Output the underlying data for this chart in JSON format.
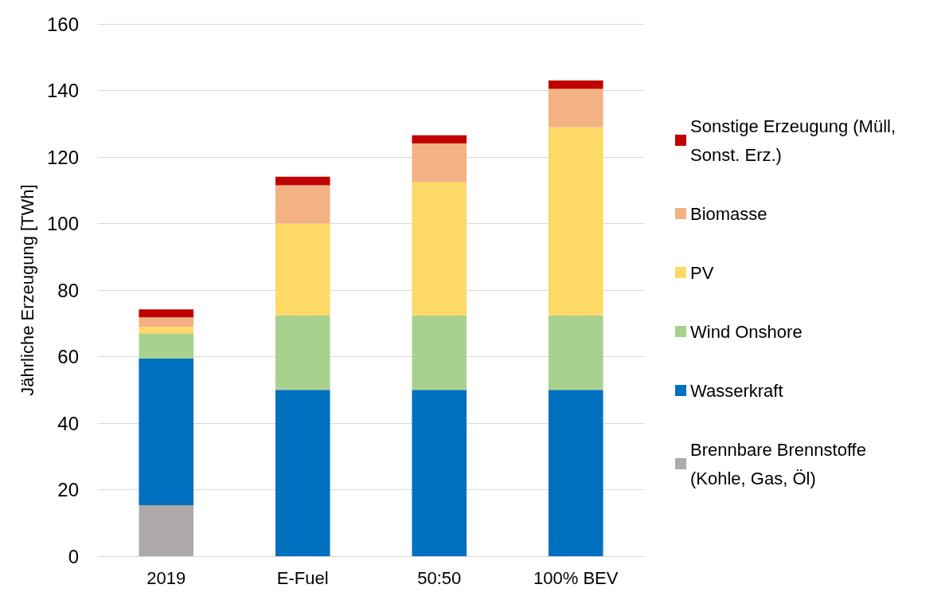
{
  "chart_data": {
    "type": "bar",
    "stacked": true,
    "ylabel": "Jährliche Erzeugung [TWh]",
    "categories": [
      "2019",
      "E-Fuel",
      "50:50",
      "100% BEV"
    ],
    "series": [
      {
        "name": "Brennbare Brennstoffe (Kohle, Gas, Öl)",
        "color": "#aeaaaa",
        "values": [
          15.3,
          0,
          0,
          0
        ]
      },
      {
        "name": "Wasserkraft",
        "color": "#0070c0",
        "values": [
          44.1,
          50,
          50,
          50
        ]
      },
      {
        "name": "Wind Onshore",
        "color": "#a9d18e",
        "values": [
          7.6,
          22.4,
          22.4,
          22.4
        ]
      },
      {
        "name": "PV",
        "color": "#ffd966",
        "values": [
          1.9,
          27.6,
          40,
          56.5
        ]
      },
      {
        "name": "Biomasse",
        "color": "#f4b183",
        "values": [
          2.9,
          11.5,
          11.7,
          11.6
        ]
      },
      {
        "name": "Sonstige Erzeugung (Müll, Sonst. Erz.)",
        "color": "#c00000",
        "values": [
          2.4,
          2.6,
          2.4,
          2.5
        ]
      }
    ],
    "ylim": [
      0,
      160
    ],
    "yticks": [
      0,
      20,
      40,
      60,
      80,
      100,
      120,
      140,
      160
    ],
    "grid": "y",
    "legend": "right"
  }
}
